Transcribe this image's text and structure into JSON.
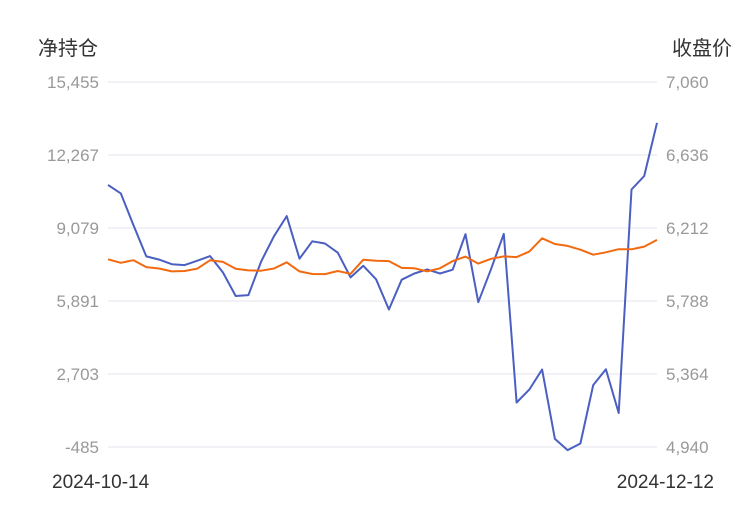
{
  "chart_data": {
    "type": "line",
    "left_axis_title": "净持仓",
    "right_axis_title": "收盘价",
    "left_ticks": [
      "15,455",
      "12,267",
      "9,079",
      "5,891",
      "2,703",
      "-485"
    ],
    "right_ticks": [
      "7,060",
      "6,636",
      "6,212",
      "5,788",
      "5,364",
      "4,940"
    ],
    "left_range": [
      -485,
      15455
    ],
    "right_range": [
      4940,
      7060
    ],
    "x_start_label": "2024-10-14",
    "x_end_label": "2024-12-12",
    "grid": true,
    "series": [
      {
        "axis": "left",
        "color": "#4a5fc1",
        "values": [
          10960,
          10590,
          9200,
          7840,
          7700,
          7500,
          7460,
          7650,
          7850,
          7140,
          6110,
          6150,
          7620,
          8720,
          9600,
          7740,
          8500,
          8400,
          8000,
          6920,
          7430,
          6840,
          5520,
          6820,
          7090,
          7270,
          7090,
          7260,
          8810,
          5840,
          7280,
          8820,
          1460,
          2020,
          2900,
          -130,
          -620,
          -330,
          2220,
          2910,
          1000,
          10760,
          11350,
          13670
        ]
      },
      {
        "axis": "right",
        "color": "#f26a10",
        "values": [
          6030,
          6010,
          6025,
          5985,
          5977,
          5960,
          5962,
          5976,
          6025,
          6015,
          5975,
          5966,
          5964,
          5977,
          6013,
          5960,
          5945,
          5944,
          5962,
          5946,
          6028,
          6022,
          6020,
          5980,
          5978,
          5960,
          5978,
          6020,
          6046,
          6005,
          6033,
          6047,
          6043,
          6075,
          6152,
          6119,
          6108,
          6086,
          6057,
          6071,
          6089,
          6088,
          6104,
          6143
        ]
      }
    ]
  }
}
